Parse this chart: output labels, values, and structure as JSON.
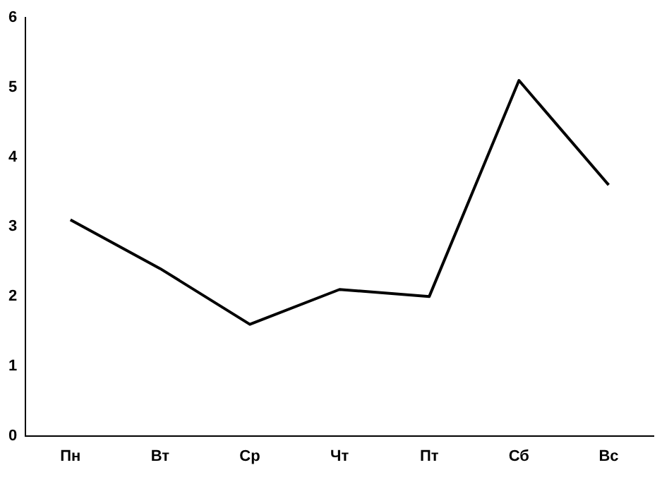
{
  "chart_data": {
    "type": "line",
    "categories": [
      "Пн",
      "Вт",
      "Ср",
      "Чт",
      "Пт",
      "Сб",
      "Вс"
    ],
    "series": [
      {
        "color": "#000000",
        "values": [
          3.1,
          2.4,
          1.6,
          2.1,
          2.0,
          5.1,
          3.6
        ]
      }
    ],
    "ylim": [
      0,
      6
    ],
    "yticks": [
      0,
      1,
      2,
      3,
      4,
      5,
      6
    ],
    "grid": false,
    "legend": false,
    "marker": "none",
    "line_style": "solid"
  }
}
